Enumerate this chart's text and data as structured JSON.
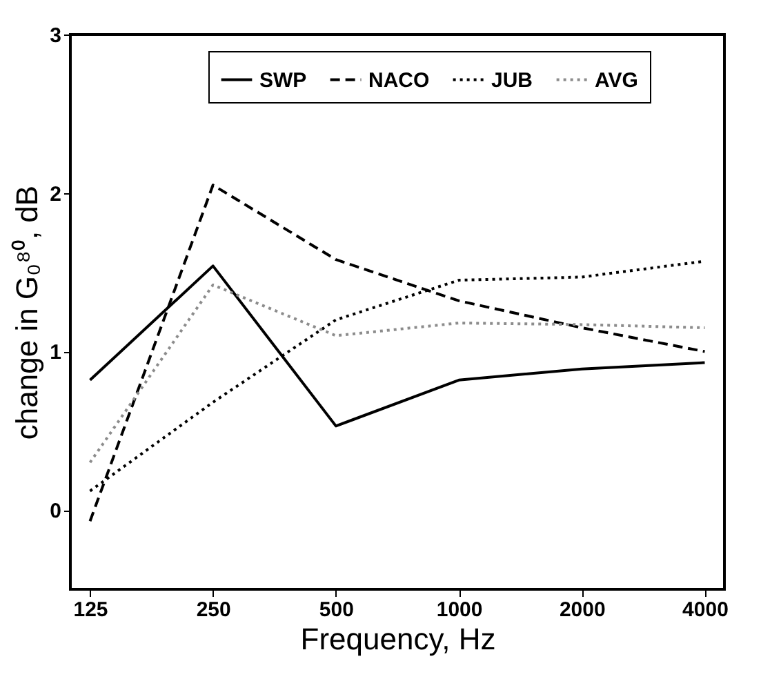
{
  "chart_data": {
    "type": "line",
    "xlabel": "Frequency, Hz",
    "ylabel": "change in G₀⁸⁰, dB",
    "categories": [
      "125",
      "250",
      "500",
      "1000",
      "2000",
      "4000"
    ],
    "series": [
      {
        "name": "SWP",
        "color": "#000000",
        "line_style": "solid",
        "values": [
          0.82,
          1.54,
          0.53,
          0.82,
          0.89,
          0.93
        ]
      },
      {
        "name": "NACO",
        "color": "#000000",
        "line_style": "dashed",
        "values": [
          -0.07,
          2.05,
          1.58,
          1.32,
          1.15,
          1.0
        ]
      },
      {
        "name": "JUB",
        "color": "#000000",
        "line_style": "dotted",
        "values": [
          0.12,
          0.68,
          1.2,
          1.45,
          1.47,
          1.57
        ]
      },
      {
        "name": "AVG",
        "color": "#8c8c8c",
        "line_style": "dotted",
        "values": [
          0.3,
          1.42,
          1.1,
          1.18,
          1.17,
          1.15
        ]
      }
    ],
    "ylim": [
      -0.5,
      3
    ],
    "yticks": [
      0,
      1,
      2,
      3
    ],
    "grid": false,
    "legend": "top",
    "marker": "none"
  }
}
